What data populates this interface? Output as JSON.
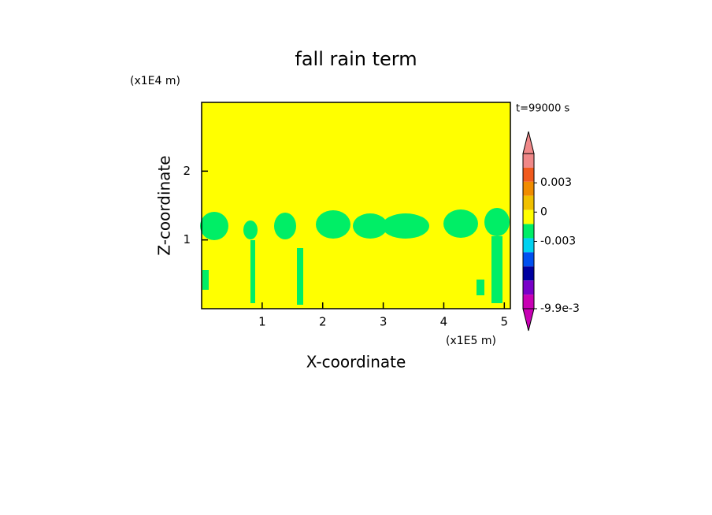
{
  "chart_data": {
    "type": "contour",
    "title": "fall rain term",
    "xlabel": "X-coordinate",
    "ylabel": "Z-coordinate",
    "x_unit": "(x1E5 m)",
    "y_unit": "(x1E4 m)",
    "annotation": "t=99000 s",
    "background_color": "#ffff00",
    "region_color": "#00ee66",
    "xlim": [
      0,
      5.1
    ],
    "ylim": [
      0,
      3
    ],
    "xticks": [
      1,
      2,
      3,
      4,
      5
    ],
    "yticks": [
      1,
      2
    ],
    "colorbar": {
      "lim": [
        -0.0099,
        0.006
      ],
      "colors": [
        "#f08888",
        "#f08888",
        "#f05a1e",
        "#f08c00",
        "#f0c000",
        "#ffff00",
        "#00ee66",
        "#00d2f0",
        "#0050f0",
        "#0000a0",
        "#7800c8",
        "#c800b4",
        "#c800b4"
      ],
      "ticks": [
        {
          "value": 0.003,
          "label": "0.003"
        },
        0,
        {
          "value": -0.003,
          "label": "-0.003"
        },
        {
          "value": -0.0099,
          "label": "-9.9e-3"
        }
      ]
    }
  }
}
